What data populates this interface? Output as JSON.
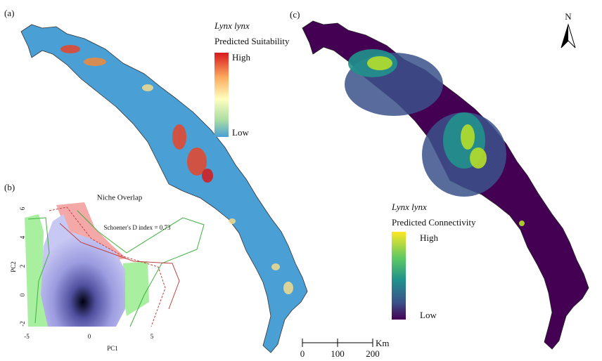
{
  "panels": {
    "a": {
      "label": "(a)",
      "legend": {
        "species": "Lynx lynx",
        "title": "Predicted Suitability",
        "high": "High",
        "low": "Low"
      }
    },
    "b": {
      "label": "(b)",
      "title": "Niche Overlap",
      "annotation": "Schoener's D index = 0.73",
      "x_label": "PC1",
      "y_label": "PC2",
      "x_ticks": [
        -5,
        0,
        5
      ],
      "y_ticks": [
        6,
        4,
        2,
        0,
        -2
      ]
    },
    "c": {
      "label": "(c)",
      "legend": {
        "species": "Lynx lynx",
        "title": "Predicted Connectivity",
        "high": "High",
        "low": "Low"
      }
    }
  },
  "north": "N",
  "scale_bar": {
    "ticks": [
      0,
      100,
      200
    ],
    "unit": "Km"
  }
}
